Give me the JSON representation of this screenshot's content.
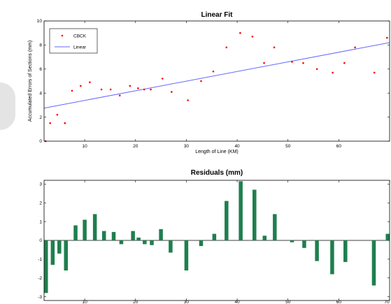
{
  "chart_data": [
    {
      "type": "scatter",
      "title": "Linear Fit",
      "xlabel": "Length of Line (KM)",
      "ylabel": "Accumulated Errors of Sections (mm)",
      "xlim": [
        2,
        70
      ],
      "ylim": [
        0,
        10
      ],
      "x_ticks": [
        10,
        20,
        30,
        40,
        50,
        60
      ],
      "y_ticks": [
        0,
        2,
        4,
        6,
        8,
        10
      ],
      "grid": false,
      "legend_position": "top-left",
      "series": [
        {
          "name": "CBCK",
          "color": "#ff0000",
          "marker": "dot",
          "x": [
            2.3,
            3.2,
            4.6,
            6.1,
            7.5,
            9.2,
            11.0,
            13.3,
            15.1,
            16.9,
            18.9,
            20.5,
            21.7,
            23.0,
            25.3,
            27.1,
            30.3,
            32.9,
            35.3,
            37.9,
            40.6,
            43.0,
            45.3,
            47.3,
            50.8,
            53.0,
            55.7,
            58.8,
            61.1,
            63.2,
            67.0,
            69.5
          ],
          "y": [
            0.0,
            1.5,
            2.2,
            1.5,
            4.2,
            4.6,
            4.9,
            4.3,
            4.3,
            3.8,
            4.6,
            4.4,
            4.3,
            4.3,
            5.2,
            4.1,
            3.4,
            5.0,
            5.8,
            7.8,
            9.0,
            8.7,
            6.5,
            7.8,
            6.6,
            6.5,
            6.0,
            5.7,
            6.5,
            7.8,
            5.7,
            8.6
          ]
        },
        {
          "name": "Linear",
          "color": "#6666ff",
          "line": true,
          "x": [
            2,
            70
          ],
          "y": [
            2.75,
            8.2
          ]
        }
      ]
    },
    {
      "type": "bar",
      "title": "Residuals (mm)",
      "xlim": [
        2,
        70
      ],
      "ylim": [
        -3.2,
        3.2
      ],
      "x_ticks": [
        10,
        20,
        30,
        40,
        50,
        60,
        70
      ],
      "y_ticks": [
        -3,
        -2,
        -1,
        0,
        1,
        2,
        3
      ],
      "color": "#1e7f4e",
      "x": [
        2.3,
        3.7,
        5.0,
        6.3,
        8.2,
        10.0,
        12.0,
        13.8,
        15.7,
        17.2,
        19.5,
        20.6,
        21.8,
        23.2,
        25.0,
        26.9,
        30.0,
        32.9,
        35.5,
        37.9,
        40.7,
        43.4,
        45.4,
        47.4,
        50.8,
        53.2,
        55.7,
        58.7,
        61.3,
        66.9,
        70.0
      ],
      "values": [
        -2.8,
        -1.3,
        -0.7,
        -1.6,
        0.8,
        1.1,
        1.4,
        0.5,
        0.45,
        -0.2,
        0.5,
        0.15,
        -0.2,
        -0.25,
        0.6,
        -0.65,
        -1.6,
        -0.3,
        0.35,
        2.1,
        3.15,
        2.7,
        0.25,
        1.4,
        -0.1,
        -0.4,
        -1.1,
        -1.8,
        -1.15,
        -2.4,
        0.35
      ]
    }
  ]
}
